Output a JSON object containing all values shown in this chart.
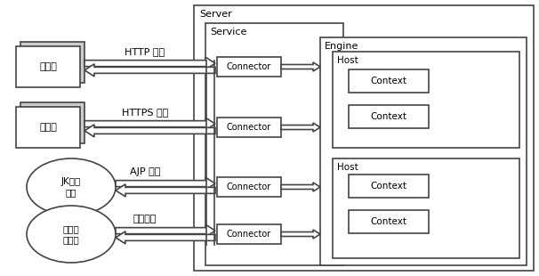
{
  "bg_color": "#ffffff",
  "fig_width": 6.06,
  "fig_height": 3.1,
  "server_label": "Server",
  "service_label": "Service",
  "engine_label": "Engine",
  "host_label": "Host",
  "connector_label": "Connector",
  "context_label": "Context",
  "protocols": [
    "HTTP 协议",
    "HTTPS 协议",
    "AJP 协议",
    "其他协议"
  ],
  "browser_labels": [
    "浏览器",
    "浏览器"
  ],
  "jk_label": "JK连接\n程序",
  "other_label": "其他连\n接程序",
  "ec": "#444444",
  "fc": "#ffffff",
  "lw": 1.2
}
